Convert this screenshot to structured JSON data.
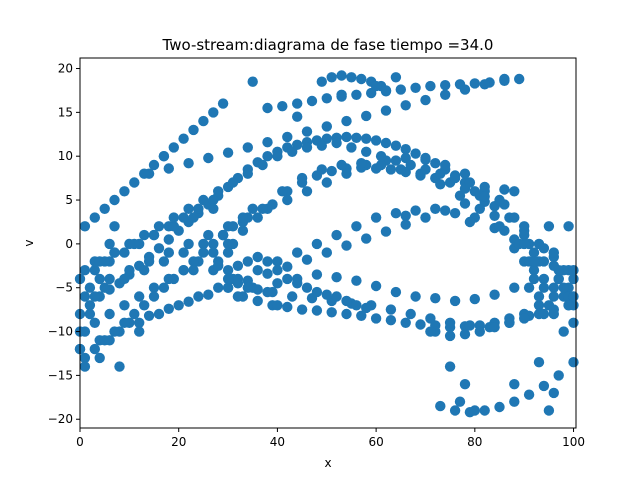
{
  "chart_data": {
    "type": "scatter",
    "title": "Two-stream:diagrama de fase  tiempo =34.0",
    "xlabel": "x",
    "ylabel": "v",
    "xlim": [
      0,
      100.5
    ],
    "ylim": [
      -21,
      21.2
    ],
    "xticks": [
      0,
      20,
      40,
      60,
      80,
      100
    ],
    "yticks": [
      -20,
      -15,
      -10,
      -5,
      0,
      5,
      10,
      15,
      20
    ],
    "marker_color": "#1f77b4",
    "grid": false,
    "legend": "none",
    "series": [
      {
        "x": [
          0,
          2,
          4,
          6,
          8,
          10,
          12,
          14,
          16,
          18,
          20,
          22,
          24,
          26,
          28,
          30,
          32,
          34,
          36,
          38,
          40,
          42,
          44,
          46,
          48,
          50,
          52,
          54,
          56,
          58,
          60,
          62,
          64,
          66,
          68,
          70,
          72,
          74,
          76,
          78,
          80,
          82,
          84,
          86,
          88,
          90,
          92,
          94,
          96,
          98,
          100,
          0,
          3,
          6,
          9,
          12,
          15,
          18,
          21,
          24,
          27,
          30,
          33,
          36,
          39,
          42,
          45,
          48,
          51,
          54,
          57,
          60,
          63,
          66,
          69,
          72,
          75,
          78,
          81,
          84,
          87,
          90,
          93,
          96,
          99,
          0,
          4,
          8,
          12,
          16,
          20,
          24,
          28,
          32,
          36,
          40,
          44,
          48,
          52,
          56,
          60,
          64,
          68,
          72,
          76,
          80,
          84,
          88,
          92,
          96,
          100,
          2,
          6,
          10,
          14,
          18,
          22,
          26,
          30,
          34,
          38,
          42,
          46,
          50,
          54,
          58,
          62,
          66,
          70,
          74,
          78,
          82,
          86,
          90,
          94,
          98,
          1,
          5,
          9,
          13,
          17,
          21,
          25,
          29,
          33,
          37,
          41,
          45,
          49,
          53,
          57,
          61,
          65,
          69,
          73,
          77,
          81,
          85,
          89,
          93,
          97,
          0,
          3,
          6,
          9,
          12,
          15,
          18,
          21,
          24,
          27,
          30,
          33,
          36,
          39,
          42,
          45,
          48,
          51,
          54,
          57,
          60,
          63,
          66,
          69,
          72,
          75,
          78,
          81,
          84,
          87,
          90,
          93,
          96,
          99,
          3,
          7,
          11,
          15,
          19,
          23,
          27,
          31,
          35,
          39,
          43,
          47,
          51,
          55,
          59,
          63,
          67,
          71,
          75,
          79,
          83,
          87,
          91,
          95,
          99,
          1,
          4,
          7,
          10,
          13,
          16,
          19,
          22,
          25,
          28,
          31,
          34,
          37,
          40,
          43,
          46,
          49,
          52,
          55,
          58,
          61,
          64,
          67,
          70,
          73,
          76,
          79,
          82,
          85,
          88,
          91,
          94,
          97,
          100,
          30,
          32,
          34,
          36,
          38,
          40,
          42,
          44,
          46,
          48,
          50,
          52,
          54,
          56,
          58,
          72,
          75,
          78,
          81,
          84,
          87,
          90,
          93,
          96,
          99,
          90,
          91,
          92,
          93,
          94,
          95,
          96,
          97,
          98,
          99,
          100,
          90,
          92,
          94,
          96,
          98,
          100,
          38,
          41,
          44,
          47,
          50,
          53,
          56,
          59,
          62,
          65,
          68,
          71,
          74,
          77,
          80,
          83,
          86,
          89,
          40,
          44,
          48,
          52,
          56,
          60,
          64,
          68,
          72,
          76,
          80,
          84,
          88,
          14,
          18,
          22,
          26,
          30,
          34,
          38,
          42,
          46,
          50,
          54,
          58,
          62,
          66,
          70,
          74,
          78,
          82,
          86,
          10,
          14,
          18,
          22,
          26,
          30,
          34,
          38,
          42,
          46,
          50,
          54,
          58,
          62,
          66,
          70,
          74,
          78,
          82,
          86,
          28,
          30,
          31,
          29,
          27,
          30,
          32,
          34,
          36,
          38,
          49,
          51,
          53,
          55,
          57,
          59,
          61,
          62,
          73,
          76,
          79,
          82,
          85,
          88,
          91,
          94,
          97,
          100,
          1,
          3,
          5,
          7,
          9,
          11,
          13,
          15,
          17,
          19,
          21,
          23,
          25,
          27,
          29,
          31,
          33,
          35,
          1,
          3,
          5,
          7,
          9,
          11,
          13,
          15,
          17,
          19,
          21,
          23,
          25,
          27,
          29,
          0,
          1,
          2,
          3,
          4,
          5,
          6,
          7,
          8,
          17,
          35,
          53,
          60,
          64,
          78,
          80,
          88,
          91,
          95,
          96,
          79,
          71,
          75,
          77,
          93,
          40,
          28,
          23,
          44,
          32,
          12,
          6,
          4,
          1,
          99,
          88,
          66
        ],
        "y": [
          -8,
          -7,
          -6,
          -5.2,
          -4.5,
          -3.5,
          -2.5,
          -1.5,
          -0.5,
          0.5,
          1.5,
          2.5,
          3.5,
          4.5,
          5.5,
          6.5,
          7.5,
          8.5,
          9.3,
          10,
          10.5,
          11,
          11.3,
          11.6,
          11.8,
          12,
          12.1,
          12.2,
          12.1,
          12,
          11.8,
          11.5,
          11.2,
          10.8,
          10.3,
          9.8,
          9.2,
          8.5,
          7.8,
          7,
          6,
          4.8,
          3.2,
          1.5,
          -0.5,
          -2,
          -3,
          -4,
          -5,
          -6,
          -7,
          -10,
          -9,
          -8,
          -7,
          -6,
          -5,
          -4,
          -3,
          -2,
          -1,
          0,
          1.5,
          3,
          4.5,
          6,
          7,
          7.8,
          8.3,
          8.6,
          8.7,
          8.6,
          8.5,
          8.2,
          8,
          7.5,
          7,
          6.3,
          5.5,
          4.3,
          3,
          1.5,
          0,
          -1.5,
          -3,
          -12,
          -11,
          -10,
          -9,
          -8,
          -7,
          -6,
          -5,
          -4,
          -3,
          -2,
          -1,
          0,
          1,
          2,
          3,
          3.5,
          3.8,
          4,
          3.5,
          3,
          1.8,
          0.5,
          -1,
          -2.5,
          -4,
          -5,
          -4,
          -3,
          -2,
          -1,
          0,
          1,
          2,
          3,
          4,
          5,
          6,
          7,
          8,
          9,
          9.5,
          9.8,
          9.6,
          9,
          8,
          6.5,
          4.5,
          2,
          -0.5,
          -3,
          -6,
          -5,
          -4,
          -3,
          -2,
          -1,
          0,
          1,
          2.5,
          4,
          6,
          7.5,
          8.5,
          9,
          9.2,
          9,
          8.5,
          7.8,
          6.8,
          5.5,
          4,
          2,
          0,
          -2,
          -4,
          -4,
          -3,
          -2,
          -1,
          0,
          1,
          2,
          3,
          4,
          5,
          -5,
          -6,
          -6.5,
          -7,
          -7.2,
          -7.5,
          -7.6,
          -7.8,
          -8,
          -8.2,
          -8.5,
          -8.7,
          -9,
          -9.2,
          -9.3,
          -9.5,
          -9.4,
          -9.3,
          -9,
          -8.5,
          -8,
          -7,
          -6,
          -5,
          -2,
          -1,
          0,
          1,
          2,
          3,
          4,
          -4,
          -5,
          -5.5,
          -6,
          -6.2,
          -6.5,
          -6.8,
          -7,
          -7.5,
          -8,
          -8.5,
          -9,
          -9.3,
          -9.5,
          -9,
          -8.2,
          -7,
          -6,
          -3,
          -2,
          -1,
          0,
          1,
          2,
          3,
          4,
          5,
          6,
          7,
          8,
          9,
          10,
          10.5,
          11,
          11.2,
          11.5,
          11,
          10.5,
          10,
          9.5,
          9,
          8.5,
          8,
          7.5,
          7,
          6,
          5,
          3,
          0,
          -2,
          -4,
          -6,
          -3,
          -2.5,
          -2,
          -1.5,
          -2,
          -3,
          -4,
          -4.5,
          -5,
          -5.5,
          -5.8,
          -6,
          -6.5,
          -7,
          -7.3,
          -10,
          -10.5,
          -10.3,
          -10,
          -9.5,
          -9,
          -8.5,
          -8,
          -7.5,
          -7,
          0,
          -2,
          -4,
          -6,
          -8,
          2,
          -1,
          -3,
          -5,
          -7,
          -9,
          1,
          -2,
          -5,
          -8,
          -10,
          -3,
          15.5,
          15.7,
          16,
          16.3,
          16.6,
          16.8,
          17,
          17.2,
          17.4,
          17.6,
          17.8,
          18,
          18.1,
          18.2,
          18.3,
          18.4,
          18.6,
          18.8,
          -4.5,
          -4,
          -3.5,
          -3.8,
          -4.2,
          -4.8,
          -5.5,
          -6,
          -6.2,
          -6.5,
          -6.3,
          -5.8,
          -5,
          8,
          8.6,
          9.2,
          9.8,
          10.4,
          11,
          11.6,
          12.2,
          12.8,
          13.4,
          14,
          14.6,
          15.2,
          15.8,
          16.4,
          17,
          17.6,
          18.2,
          18.8,
          -9,
          -8.2,
          -7.4,
          -6.6,
          -5.8,
          -5,
          -4.2,
          -3.4,
          -2.6,
          -1.8,
          -1,
          -0.2,
          0.6,
          1.4,
          2.2,
          3,
          3.8,
          4.6,
          5.4,
          6.2,
          -2,
          -1,
          0,
          1,
          -3,
          -4,
          -4.5,
          -5,
          -5.2,
          -5.5,
          18.5,
          19,
          19.2,
          19,
          18.8,
          18.5,
          18,
          17.5,
          -18.5,
          -19,
          -19.2,
          -19,
          -18.6,
          -18,
          -17.2,
          -16.2,
          -15,
          -13.5,
          -13,
          -12,
          -11,
          -10,
          -9,
          -8,
          -7,
          -6,
          -5,
          -4,
          -3,
          -2,
          -1,
          0,
          1,
          2,
          3,
          4,
          2,
          3,
          4,
          5,
          6,
          7,
          8,
          9,
          10,
          11,
          12,
          13,
          14,
          15,
          16,
          -12,
          -10,
          -8,
          -6,
          -4,
          -2,
          0,
          2,
          -14,
          10,
          18.5,
          17,
          18,
          19,
          -16,
          -19,
          6,
          -5,
          -19,
          -17,
          2.5,
          -10,
          -14,
          -18,
          -13.5,
          -7,
          -2.5,
          -3,
          14.5,
          -6,
          -10,
          -11,
          -13,
          -14,
          2,
          -16,
          3.2
        ]
      }
    ]
  }
}
